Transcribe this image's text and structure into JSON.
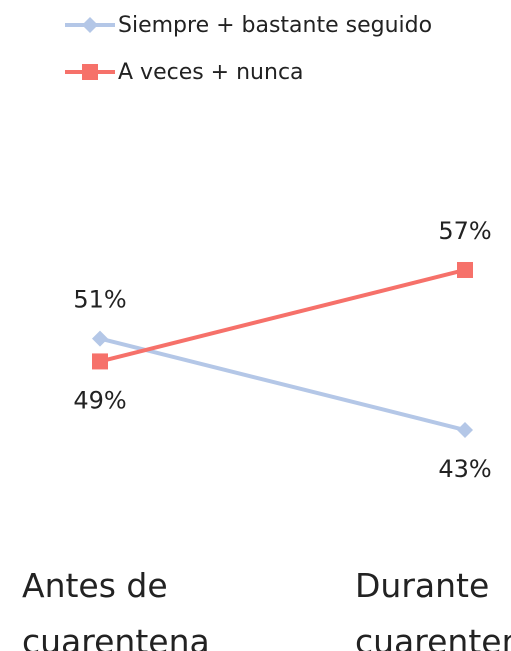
{
  "chart_data": {
    "type": "line",
    "categories": [
      "Antes de cuarentena",
      "Durante cuarentena"
    ],
    "series": [
      {
        "name": "Siempre + bastante seguido",
        "color": "#b4c7e7",
        "marker": "diamond",
        "values": [
          51,
          43
        ],
        "value_labels": [
          "51%",
          "43%"
        ]
      },
      {
        "name": "A veces + nunca",
        "color": "#f6716a",
        "marker": "square",
        "values": [
          49,
          57
        ],
        "value_labels": [
          "49%",
          "57%"
        ]
      }
    ],
    "ylim": [
      40,
      60
    ],
    "legend": "top"
  }
}
